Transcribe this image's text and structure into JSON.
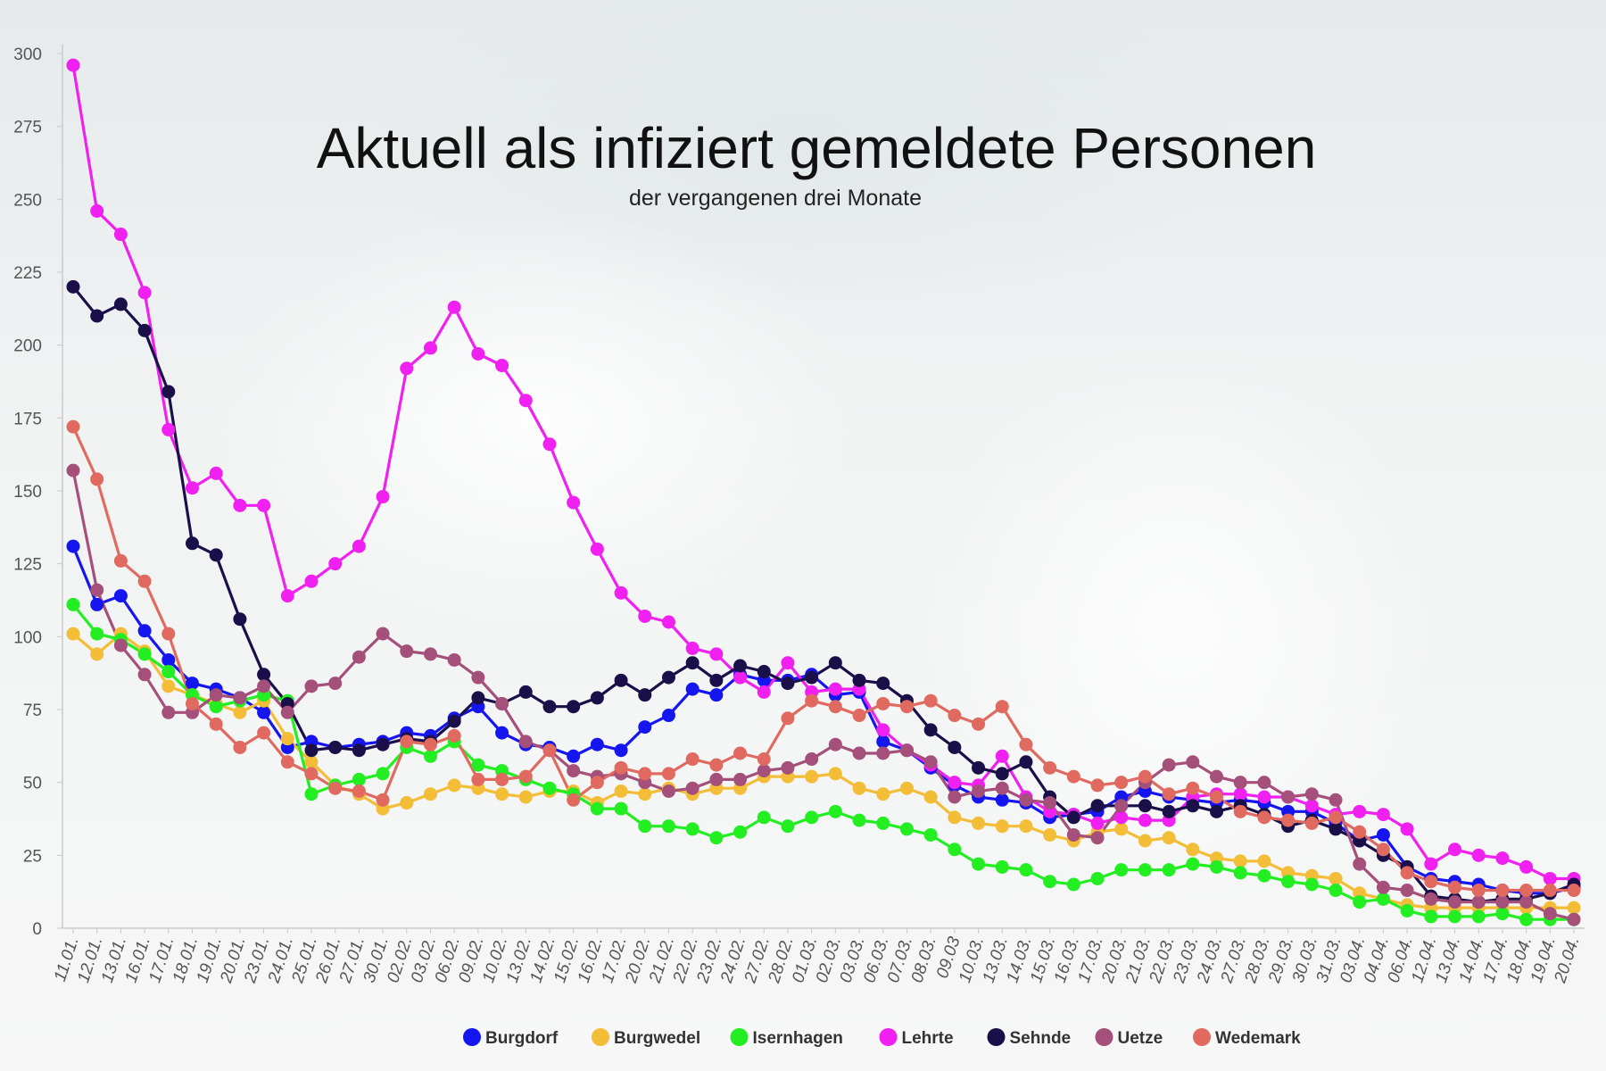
{
  "chart_data": {
    "type": "line",
    "title": "Aktuell als infiziert gemeldete Personen",
    "subtitle": "der vergangenen drei Monate",
    "xlabel": "",
    "ylabel": "",
    "ylim": [
      0,
      300
    ],
    "yticks": [
      "0",
      "25",
      "50",
      "75",
      "100",
      "125",
      "150",
      "175",
      "200",
      "225",
      "250",
      "275",
      "300"
    ],
    "legend_position": "bottom",
    "categories": [
      "11.01.",
      "12.01.",
      "13.01.",
      "16.01.",
      "17.01.",
      "18.01.",
      "19.01.",
      "20.01.",
      "23.01.",
      "24.01.",
      "25.01.",
      "26.01.",
      "27.01.",
      "30.01.",
      "02.02.",
      "03.02.",
      "06.02.",
      "09.02.",
      "10.02.",
      "13.02.",
      "14.02.",
      "15.02.",
      "16.02.",
      "17.02.",
      "20.02.",
      "21.02.",
      "22.02.",
      "23.02.",
      "24.02.",
      "27.02.",
      "28.02.",
      "01.03.",
      "02.03.",
      "03.03.",
      "06.03.",
      "07.03.",
      "08.03.",
      "09.03",
      "10.03.",
      "13.03.",
      "14.03.",
      "15.03.",
      "16.03.",
      "17.03.",
      "20.03.",
      "21.03.",
      "22.03.",
      "23.03.",
      "24.03.",
      "27.03.",
      "28.03.",
      "29.03.",
      "30.03.",
      "31.03.",
      "03.04.",
      "04.04.",
      "06.04.",
      "12.04.",
      "13.04.",
      "14.04.",
      "17.04.",
      "18.04.",
      "19.04.",
      "20.04."
    ],
    "series": [
      {
        "name": "Burgdorf",
        "color": "#1515f0",
        "values": [
          131,
          111,
          114,
          102,
          92,
          84,
          82,
          79,
          74,
          62,
          64,
          62,
          63,
          64,
          67,
          66,
          72,
          76,
          67,
          63,
          62,
          59,
          63,
          61,
          69,
          73,
          82,
          80,
          87,
          85,
          85,
          87,
          80,
          81,
          64,
          61,
          55,
          49,
          45,
          44,
          43,
          38,
          39,
          40,
          45,
          47,
          45,
          44,
          43,
          44,
          43,
          40,
          40,
          36,
          30,
          32,
          21,
          17,
          16,
          15,
          13,
          12,
          12,
          14
        ]
      },
      {
        "name": "Burgwedel",
        "color": "#f3bd37",
        "values": [
          101,
          94,
          101,
          95,
          83,
          80,
          77,
          74,
          78,
          65,
          57,
          49,
          46,
          41,
          43,
          46,
          49,
          48,
          46,
          45,
          47,
          47,
          43,
          47,
          46,
          48,
          46,
          48,
          48,
          52,
          52,
          52,
          53,
          48,
          46,
          48,
          45,
          38,
          36,
          35,
          35,
          32,
          30,
          33,
          34,
          30,
          31,
          27,
          24,
          23,
          23,
          19,
          18,
          17,
          12,
          10,
          8,
          7,
          7,
          7,
          7,
          7,
          7,
          7
        ]
      },
      {
        "name": "Isernhagen",
        "color": "#22ee22",
        "values": [
          111,
          101,
          99,
          94,
          88,
          80,
          76,
          78,
          80,
          78,
          46,
          49,
          51,
          53,
          62,
          59,
          64,
          56,
          54,
          51,
          48,
          46,
          41,
          41,
          35,
          35,
          34,
          31,
          33,
          38,
          35,
          38,
          40,
          37,
          36,
          34,
          32,
          27,
          22,
          21,
          20,
          16,
          15,
          17,
          20,
          20,
          20,
          22,
          21,
          19,
          18,
          16,
          15,
          13,
          9,
          10,
          6,
          4,
          4,
          4,
          5,
          3,
          3,
          3
        ]
      },
      {
        "name": "Lehrte",
        "color": "#f020f0",
        "values": [
          296,
          246,
          238,
          218,
          171,
          151,
          156,
          145,
          145,
          114,
          119,
          125,
          131,
          148,
          192,
          199,
          213,
          197,
          193,
          181,
          166,
          146,
          130,
          115,
          107,
          105,
          96,
          94,
          86,
          81,
          91,
          81,
          82,
          82,
          68,
          61,
          56,
          50,
          49,
          59,
          45,
          40,
          39,
          36,
          38,
          37,
          37,
          45,
          46,
          46,
          45,
          45,
          42,
          39,
          40,
          39,
          34,
          22,
          27,
          25,
          24,
          21,
          17,
          17
        ]
      },
      {
        "name": "Sehnde",
        "color": "#1a0f48",
        "values": [
          220,
          210,
          214,
          205,
          184,
          132,
          128,
          106,
          87,
          77,
          61,
          62,
          61,
          63,
          65,
          64,
          71,
          79,
          77,
          81,
          76,
          76,
          79,
          85,
          80,
          86,
          91,
          85,
          90,
          88,
          84,
          86,
          91,
          85,
          84,
          78,
          68,
          62,
          55,
          53,
          57,
          45,
          38,
          42,
          42,
          42,
          40,
          42,
          40,
          42,
          39,
          35,
          37,
          34,
          30,
          25,
          21,
          11,
          10,
          9,
          10,
          10,
          12,
          15
        ]
      },
      {
        "name": "Uetze",
        "color": "#a5507a",
        "values": [
          157,
          116,
          97,
          87,
          74,
          74,
          80,
          79,
          83,
          74,
          83,
          84,
          93,
          101,
          95,
          94,
          92,
          86,
          77,
          64,
          61,
          54,
          52,
          53,
          50,
          47,
          48,
          51,
          51,
          54,
          55,
          58,
          63,
          60,
          60,
          61,
          57,
          45,
          47,
          48,
          44,
          43,
          32,
          31,
          42,
          50,
          56,
          57,
          52,
          50,
          50,
          45,
          46,
          44,
          22,
          14,
          13,
          10,
          9,
          9,
          9,
          9,
          5,
          3
        ]
      },
      {
        "name": "Wedemark",
        "color": "#e06a60",
        "values": [
          172,
          154,
          126,
          119,
          101,
          77,
          70,
          62,
          67,
          57,
          53,
          48,
          47,
          44,
          64,
          63,
          66,
          51,
          51,
          52,
          61,
          44,
          50,
          55,
          53,
          53,
          58,
          56,
          60,
          58,
          72,
          78,
          76,
          73,
          77,
          76,
          78,
          73,
          70,
          76,
          63,
          55,
          52,
          49,
          50,
          52,
          46,
          48,
          45,
          40,
          38,
          37,
          36,
          38,
          33,
          27,
          19,
          16,
          14,
          13,
          13,
          13,
          13,
          13
        ]
      }
    ]
  }
}
